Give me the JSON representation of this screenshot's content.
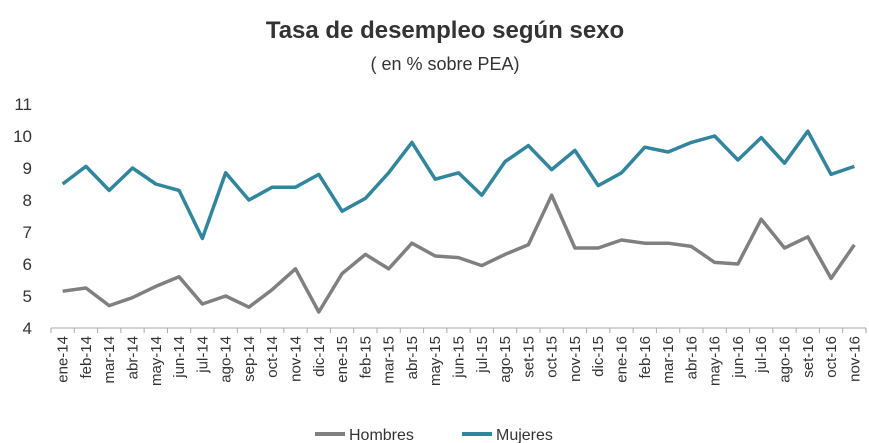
{
  "chart_data": {
    "type": "line",
    "title": "Tasa de desempleo según sexo",
    "subtitle": "( en % sobre PEA)",
    "categories": [
      "ene-14",
      "feb-14",
      "mar-14",
      "abr-14",
      "may-14",
      "jun-14",
      "jul-14",
      "ago-14",
      "sep-14",
      "oct-14",
      "nov-14",
      "dic-14",
      "ene-15",
      "feb-15",
      "mar-15",
      "abr-15",
      "may-15",
      "jun-15",
      "jul-15",
      "ago-15",
      "set-15",
      "oct-15",
      "nov-15",
      "dic-15",
      "ene-16",
      "feb-16",
      "mar-16",
      "abr-16",
      "may-16",
      "jun-16",
      "jul-16",
      "ago-16",
      "set-16",
      "oct-16",
      "nov-16"
    ],
    "series": [
      {
        "name": "Hombres",
        "color": "#808080",
        "values": [
          5.15,
          5.25,
          4.7,
          4.95,
          5.3,
          5.6,
          4.75,
          5.0,
          4.65,
          5.2,
          5.85,
          4.5,
          5.7,
          6.3,
          5.85,
          6.65,
          6.25,
          6.2,
          5.95,
          6.3,
          6.6,
          8.15,
          6.5,
          6.5,
          6.75,
          6.65,
          6.65,
          6.55,
          6.05,
          6.0,
          7.4,
          6.5,
          6.85,
          5.55,
          6.6
        ]
      },
      {
        "name": "Mujeres",
        "color": "#31859c",
        "values": [
          8.5,
          9.05,
          8.3,
          9.0,
          8.5,
          8.3,
          6.8,
          8.85,
          8.0,
          8.4,
          8.4,
          8.8,
          7.65,
          8.05,
          8.85,
          9.8,
          8.65,
          8.85,
          8.15,
          9.2,
          9.7,
          8.95,
          9.55,
          8.45,
          8.85,
          9.65,
          9.5,
          9.8,
          10.0,
          9.25,
          9.95,
          9.15,
          10.15,
          8.8,
          9.05
        ]
      }
    ],
    "ylim": [
      4,
      11
    ],
    "yticks": [
      4,
      5,
      6,
      7,
      8,
      9,
      10,
      11
    ],
    "grid": false,
    "legend": "bottom"
  }
}
